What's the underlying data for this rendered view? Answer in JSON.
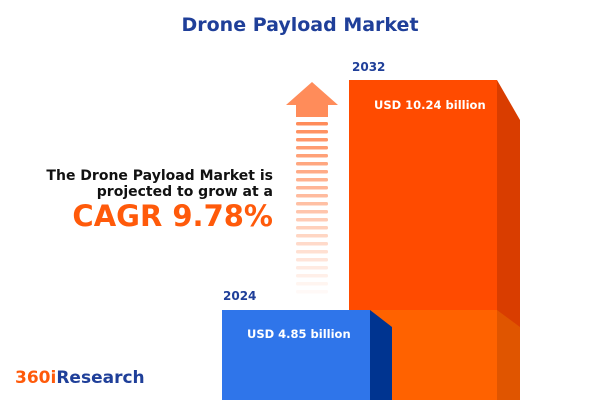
{
  "title": "Drone Payload Market",
  "lead_line1": "The Drone Payload Market is",
  "lead_line2": "projected to grow at a",
  "cagr_text": "CAGR 9.78%",
  "logo": {
    "part1": "360i",
    "part2": "Research"
  },
  "colors": {
    "title": "#1f3f99",
    "accent": "#ff5a0a",
    "bar_2024": "#2f75ea",
    "bar_2032": "#ff4b00"
  },
  "chart_data": {
    "type": "bar",
    "categories": [
      "2024",
      "2032"
    ],
    "values": [
      4.85,
      10.24
    ],
    "data_labels": [
      "USD 4.85 billion",
      "USD 10.24 billion"
    ],
    "title": "Drone Payload Market",
    "unit": "USD billion",
    "cagr": "9.78%"
  }
}
